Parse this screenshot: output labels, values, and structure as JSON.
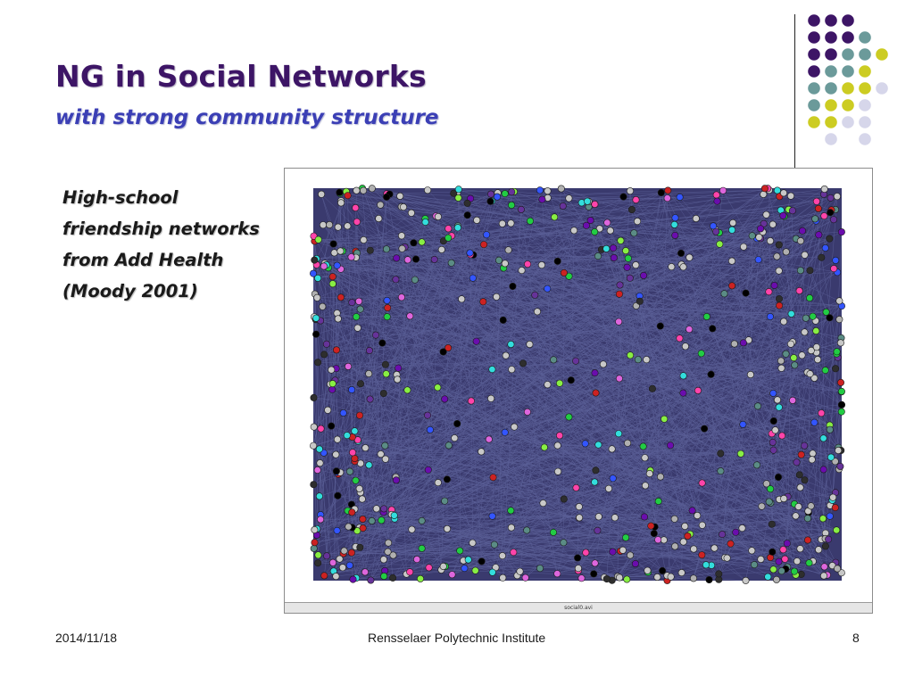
{
  "slide": {
    "title": "NG in Social Networks",
    "subtitle": "with strong community structure",
    "body_lines": [
      "High-school",
      "friendship networks",
      "from Add Health",
      "(Moody 2001)"
    ],
    "figure": {
      "status_label": "social0.avi",
      "background_color": "#3a3a6e",
      "edge_color": "#5a5f96",
      "node_palette": [
        "#c8c8c8",
        "#c8c8c8",
        "#c8c8c8",
        "#c8c8c8",
        "#b0b0b0",
        "#000000",
        "#6a0dad",
        "#3355ff",
        "#22cc44",
        "#ff44aa",
        "#33dddd",
        "#cc2222",
        "#dd66dd",
        "#88ee44",
        "#5b8c85",
        "#663399",
        "#2e2e2e"
      ]
    },
    "decoration": {
      "dot_colors": {
        "purple": "#3d1566",
        "teal": "#6b9a9a",
        "yellow": "#cccc22",
        "lavender": "#d6d6ea"
      },
      "dot_rows": [
        [
          "purple",
          "purple",
          "purple",
          null,
          null
        ],
        [
          "purple",
          "purple",
          "purple",
          "teal",
          null
        ],
        [
          "purple",
          "purple",
          "teal",
          "teal",
          "yellow"
        ],
        [
          "purple",
          "teal",
          "teal",
          "yellow",
          null
        ],
        [
          "teal",
          "teal",
          "yellow",
          "yellow",
          "lavender"
        ],
        [
          "teal",
          "yellow",
          "yellow",
          "lavender",
          null
        ],
        [
          "yellow",
          "yellow",
          "lavender",
          "lavender",
          null
        ],
        [
          null,
          "lavender",
          null,
          "lavender",
          null
        ]
      ]
    }
  },
  "footer": {
    "date": "2014/11/18",
    "institution": "Rensselaer Polytechnic Institute",
    "page_number": "8"
  }
}
